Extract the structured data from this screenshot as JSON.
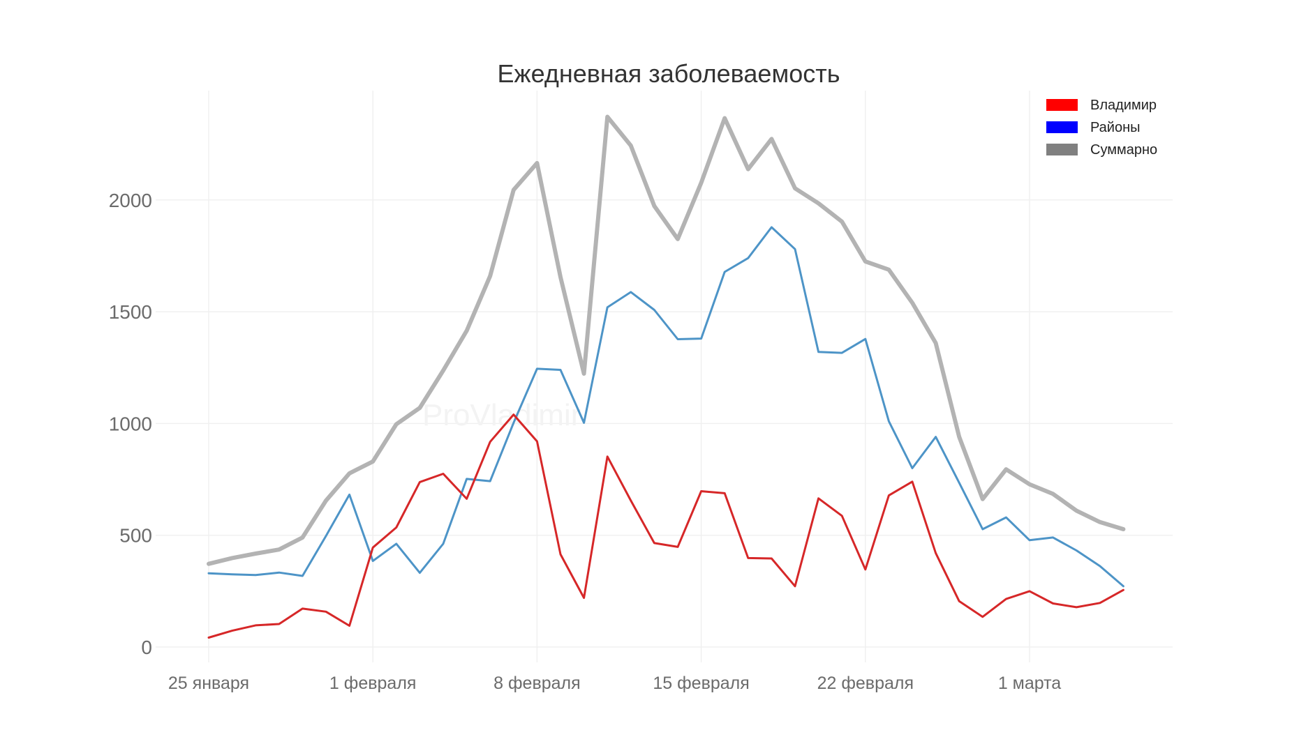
{
  "chart_data": {
    "type": "line",
    "title": "Ежедневная заболеваемость",
    "xlabel": "",
    "ylabel": "",
    "x_ticks": [
      {
        "index": 0,
        "label": "25 января"
      },
      {
        "index": 7,
        "label": "1 февраля"
      },
      {
        "index": 14,
        "label": "8 февраля"
      },
      {
        "index": 21,
        "label": "15 февраля"
      },
      {
        "index": 28,
        "label": "22 февраля"
      },
      {
        "index": 35,
        "label": "1 марта"
      }
    ],
    "y_ticks": [
      0,
      500,
      1000,
      1500,
      2000
    ],
    "ylim": [
      -50,
      2520
    ],
    "xlim": [
      -2,
      41
    ],
    "watermark": "ProVladimir",
    "grid": true,
    "legend_position": "top-right",
    "series": [
      {
        "name": "Владимир",
        "color": "#d62728",
        "legend_color": "#ff0000",
        "line_width": 3,
        "values": [
          42,
          73,
          97,
          103,
          172,
          158,
          95,
          445,
          535,
          738,
          775,
          663,
          918,
          1040,
          920,
          415,
          220,
          852,
          655,
          465,
          448,
          697,
          688,
          398,
          396,
          272,
          665,
          587,
          347,
          678,
          740,
          420,
          205,
          135,
          215,
          250,
          195,
          178,
          197,
          255
        ]
      },
      {
        "name": "Районы",
        "color": "#4d94c7",
        "legend_color": "#0000ff",
        "line_width": 3,
        "values": [
          330,
          325,
          322,
          333,
          318,
          497,
          682,
          385,
          462,
          332,
          462,
          752,
          742,
          1003,
          1245,
          1240,
          1003,
          1520,
          1588,
          1508,
          1377,
          1380,
          1678,
          1740,
          1878,
          1780,
          1320,
          1316,
          1378,
          1010,
          800,
          940,
          735,
          527,
          580,
          478,
          490,
          432,
          362,
          272
        ]
      },
      {
        "name": "Суммарно",
        "color": "#b3b3b3",
        "legend_color": "#808080",
        "line_width": 6,
        "values": [
          372,
          398,
          418,
          436,
          490,
          655,
          777,
          830,
          997,
          1070,
          1237,
          1415,
          1660,
          2045,
          2165,
          1655,
          1223,
          2372,
          2243,
          1973,
          1825,
          2077,
          2366,
          2138,
          2273,
          2052,
          1985,
          1903,
          1725,
          1688,
          1540,
          1360,
          940,
          662,
          795,
          728,
          685,
          610,
          559,
          527
        ]
      }
    ]
  }
}
